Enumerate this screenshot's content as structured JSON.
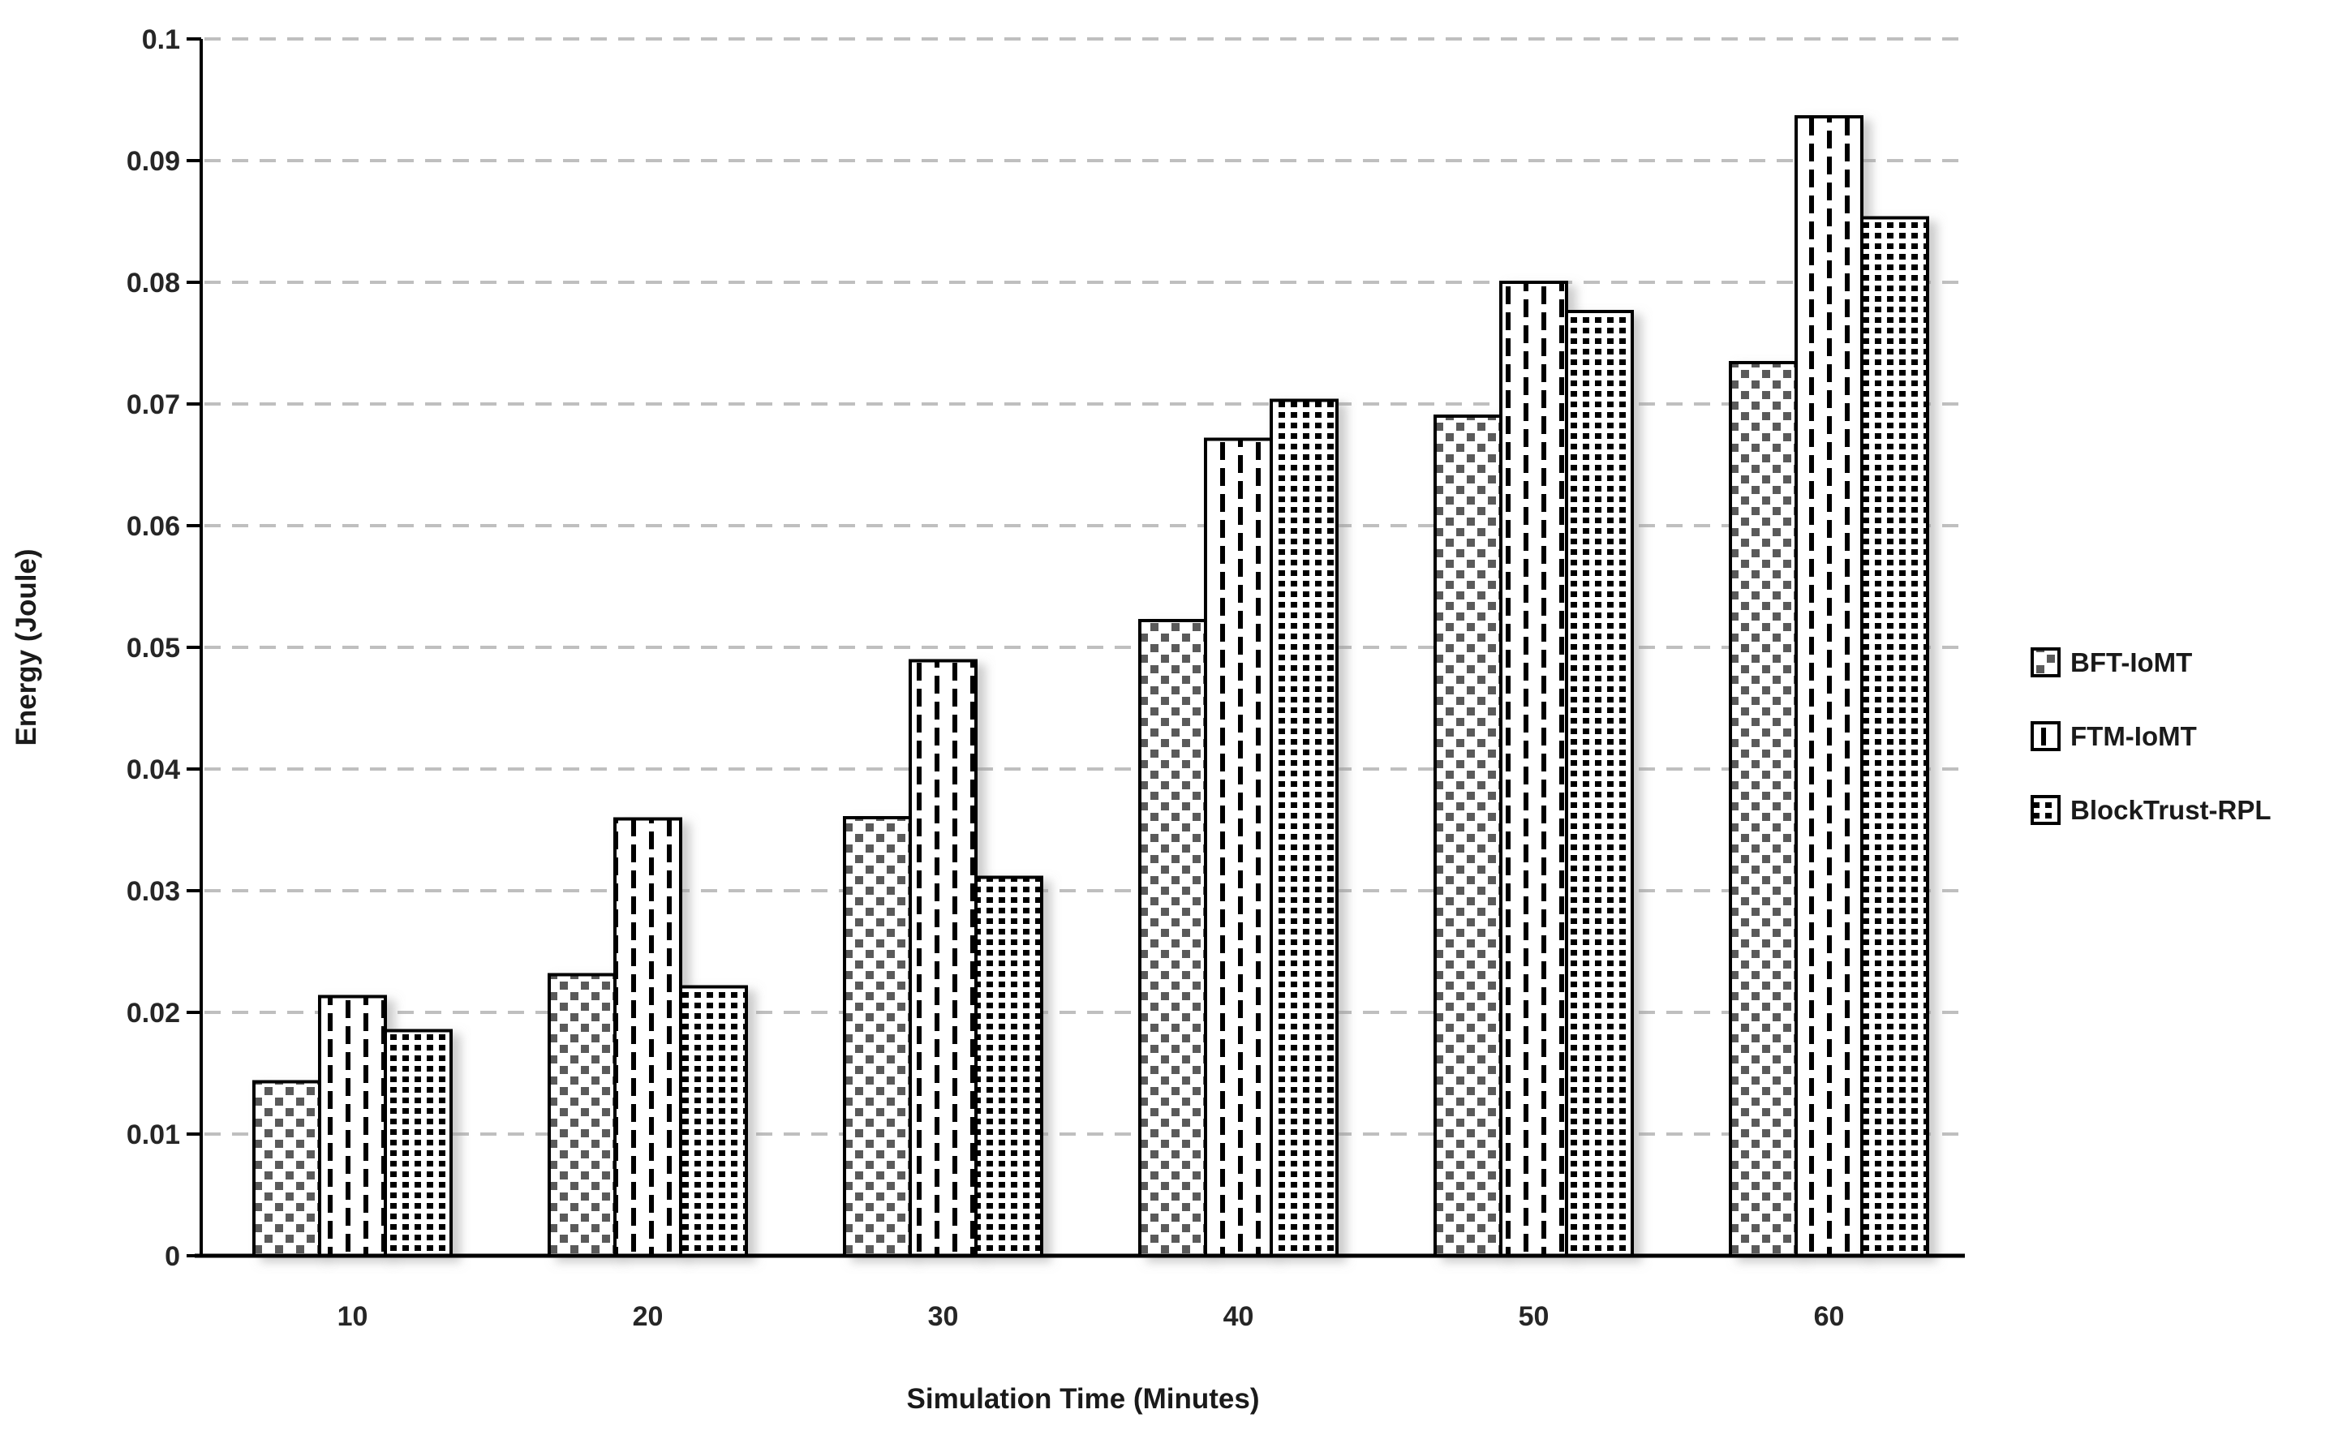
{
  "chart_data": {
    "type": "bar",
    "title": "",
    "xlabel": "Simulation Time (Minutes)",
    "ylabel": "Energy (Joule)",
    "categories": [
      "10",
      "20",
      "30",
      "40",
      "50",
      "60"
    ],
    "series": [
      {
        "name": "BFT-IoMT",
        "pattern": "gray-square-stipple",
        "values": [
          0.0143,
          0.0231,
          0.036,
          0.0522,
          0.069,
          0.0734
        ]
      },
      {
        "name": "FTM-IoMT",
        "pattern": "vertical-dashes",
        "values": [
          0.0213,
          0.0359,
          0.0489,
          0.0671,
          0.08,
          0.0936
        ]
      },
      {
        "name": "BlockTrust-RPL",
        "pattern": "dotted-grid",
        "values": [
          0.0185,
          0.0221,
          0.0311,
          0.0703,
          0.0776,
          0.0853
        ]
      }
    ],
    "ylim": [
      0,
      0.1
    ],
    "y_ticks": [
      "0.1",
      "0.09",
      "0.08",
      "0.07",
      "0.06",
      "0.05",
      "0.04",
      "0.03",
      "0.02",
      "0.01",
      "0"
    ],
    "y_tick_values": [
      0.1,
      0.09,
      0.08,
      0.07,
      0.06,
      0.05,
      0.04,
      0.03,
      0.02,
      0.01,
      0
    ],
    "grid": "horizontal-dashed",
    "legend_position": "right",
    "colors": {
      "bar_outline": "#000000",
      "bar_fill_bg": "#ffffff",
      "stipple_gray": "#5a5a5a",
      "gridline": "#bfbfbf",
      "axis_line": "#000000",
      "tick_text": "#262626",
      "title_text": "#1a1a1a"
    }
  }
}
